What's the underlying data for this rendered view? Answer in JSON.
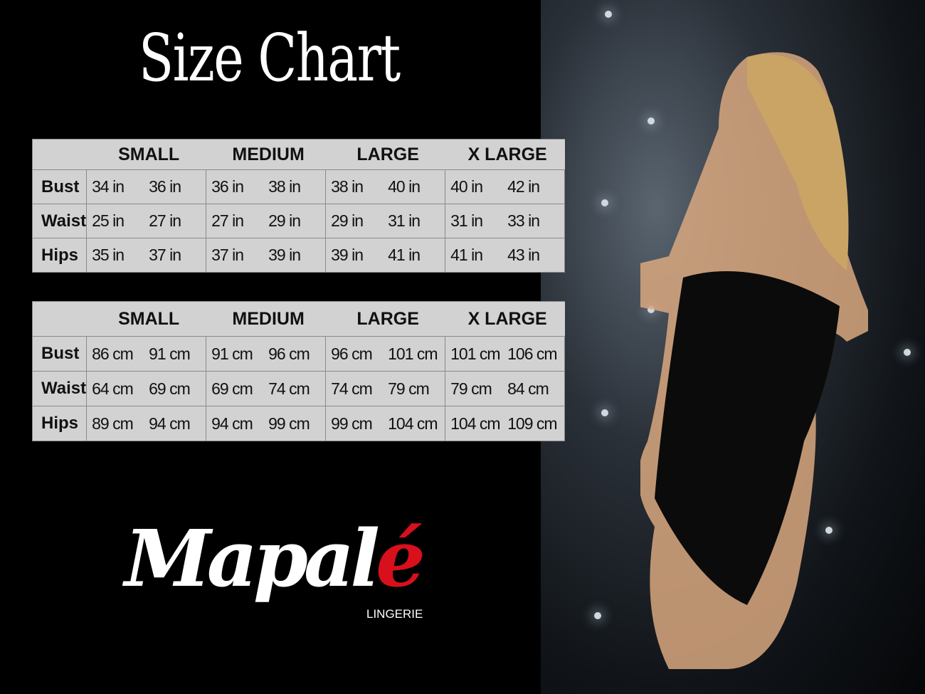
{
  "title": "Size Chart",
  "sizes": [
    "SMALL",
    "MEDIUM",
    "LARGE",
    "X LARGE"
  ],
  "inches_table": {
    "rows": [
      {
        "label": "Bust",
        "values": [
          "34 in",
          "36 in",
          "36 in",
          "38 in",
          "38 in",
          "40 in",
          "40 in",
          "42 in"
        ]
      },
      {
        "label": "Waist",
        "values": [
          "25 in",
          "27 in",
          "27 in",
          "29 in",
          "29 in",
          "31 in",
          "31 in",
          "33 in"
        ]
      },
      {
        "label": "Hips",
        "values": [
          "35 in",
          "37 in",
          "37 in",
          "39 in",
          "39 in",
          "41 in",
          "41 in",
          "43 in"
        ]
      }
    ]
  },
  "cm_table": {
    "rows": [
      {
        "label": "Bust",
        "values": [
          "86 cm",
          "91 cm",
          "91 cm",
          "96 cm",
          "96 cm",
          "101 cm",
          "101 cm",
          "106 cm"
        ]
      },
      {
        "label": "Waist",
        "values": [
          "64 cm",
          "69 cm",
          "69 cm",
          "74 cm",
          "74 cm",
          "79  cm",
          "79 cm",
          "84 cm"
        ]
      },
      {
        "label": "Hips",
        "values": [
          "89 cm",
          "94 cm",
          "94 cm",
          "99 cm",
          "99 cm",
          "104 cm",
          "104 cm",
          "109 cm"
        ]
      }
    ]
  },
  "brand": {
    "name": "Mapalé",
    "name_main": "Mapal",
    "name_accent": "é",
    "tagline": "LINGERIE",
    "accent_color": "#d8101c"
  }
}
